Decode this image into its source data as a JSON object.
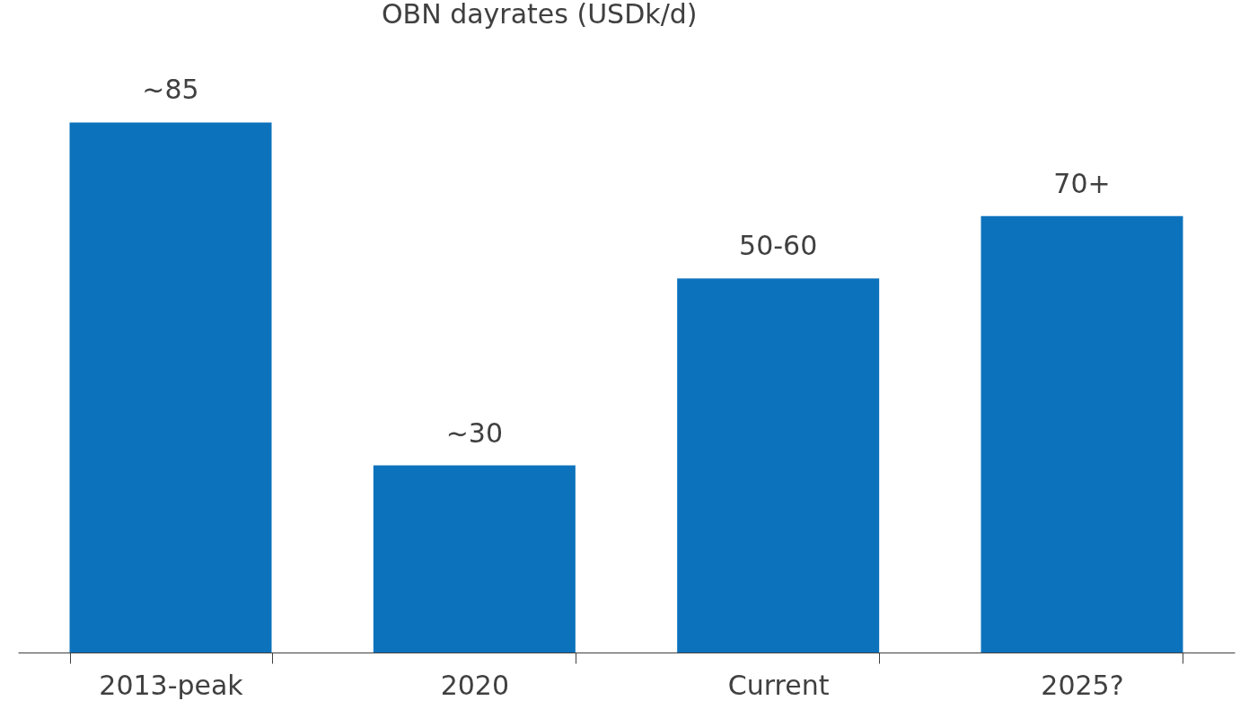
{
  "chart_data": {
    "type": "bar",
    "title": "OBN dayrates (USDk/d)",
    "categories": [
      "2013-peak",
      "2020",
      "Current",
      "2025?"
    ],
    "values": [
      85,
      30,
      60,
      70
    ],
    "value_labels": [
      "~85",
      "~30",
      "50-60",
      "70+"
    ],
    "color": "#0d72bc",
    "grid": false
  }
}
